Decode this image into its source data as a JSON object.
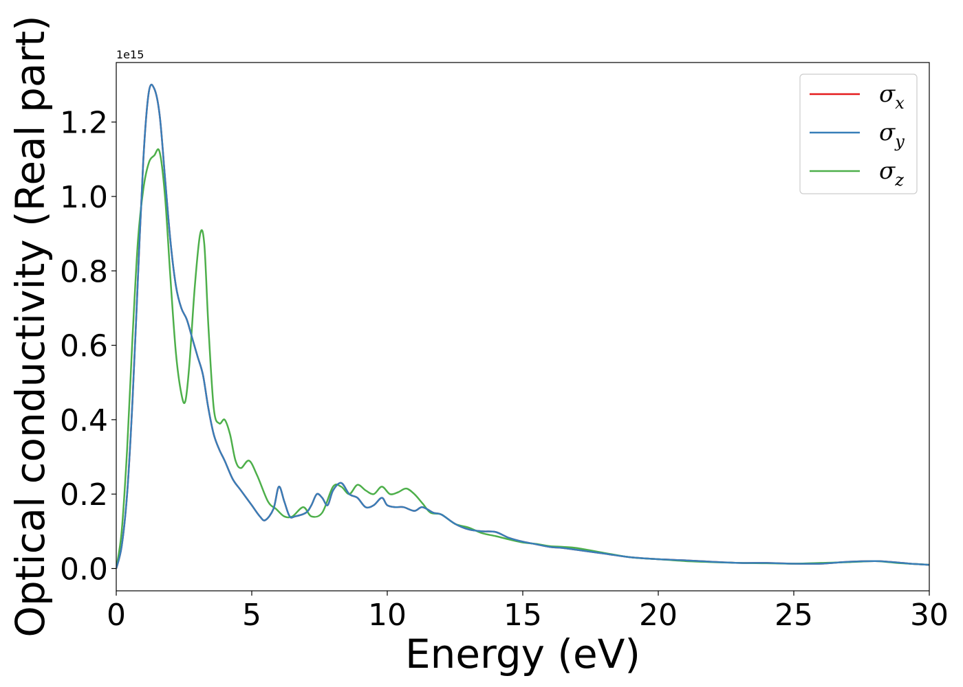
{
  "chart_data": {
    "type": "line",
    "xlabel": "Energy (eV)",
    "ylabel": "Optical conductivity (Real part)",
    "y_offset_label": "1e15",
    "y_scale": 1000000000000000.0,
    "xlim": [
      0,
      30
    ],
    "ylim": [
      -0.06,
      1.36
    ],
    "xticks": [
      0,
      5,
      10,
      15,
      20,
      25,
      30
    ],
    "xtick_labels": [
      "0",
      "5",
      "10",
      "15",
      "20",
      "25",
      "30"
    ],
    "yticks": [
      0.0,
      0.2,
      0.4,
      0.6,
      0.8,
      1.0,
      1.2
    ],
    "ytick_labels": [
      "0.0",
      "0.2",
      "0.4",
      "0.6",
      "0.8",
      "1.0",
      "1.2"
    ],
    "grid": false,
    "legend_position": "top-right",
    "legend": [
      {
        "symbol": "σ",
        "subscript": "x"
      },
      {
        "symbol": "σ",
        "subscript": "y"
      },
      {
        "symbol": "σ",
        "subscript": "z"
      }
    ],
    "series": [
      {
        "color": "#e41a1c",
        "x": [
          0,
          0.2,
          0.4,
          0.6,
          0.8,
          1.0,
          1.2,
          1.4,
          1.6,
          1.8,
          2.0,
          2.2,
          2.4,
          2.6,
          2.8,
          3.0,
          3.2,
          3.4,
          3.6,
          3.8,
          4.0,
          4.3,
          4.6,
          5.0,
          5.3,
          5.5,
          5.8,
          6.0,
          6.2,
          6.4,
          6.6,
          7.0,
          7.2,
          7.4,
          7.6,
          7.8,
          8.0,
          8.3,
          8.6,
          8.9,
          9.2,
          9.5,
          9.8,
          10.0,
          10.3,
          10.6,
          11.0,
          11.3,
          11.7,
          12.0,
          12.5,
          13.0,
          13.5,
          14.0,
          14.5,
          15.0,
          15.5,
          16.0,
          16.5,
          17.0,
          18.0,
          19.0,
          20.0,
          21.0,
          22.0,
          23.0,
          24.0,
          25.0,
          26.0,
          27.0,
          28.0,
          28.5,
          29.0,
          29.5,
          30.0
        ],
        "y": [
          0.0,
          0.06,
          0.2,
          0.45,
          0.78,
          1.1,
          1.28,
          1.29,
          1.22,
          1.05,
          0.88,
          0.76,
          0.7,
          0.67,
          0.62,
          0.57,
          0.52,
          0.43,
          0.36,
          0.32,
          0.29,
          0.24,
          0.21,
          0.17,
          0.14,
          0.13,
          0.16,
          0.22,
          0.18,
          0.14,
          0.14,
          0.15,
          0.17,
          0.2,
          0.19,
          0.17,
          0.21,
          0.23,
          0.2,
          0.19,
          0.165,
          0.17,
          0.19,
          0.17,
          0.165,
          0.165,
          0.155,
          0.165,
          0.15,
          0.145,
          0.12,
          0.105,
          0.1,
          0.098,
          0.082,
          0.072,
          0.065,
          0.058,
          0.055,
          0.05,
          0.04,
          0.03,
          0.025,
          0.022,
          0.018,
          0.015,
          0.015,
          0.013,
          0.013,
          0.018,
          0.02,
          0.018,
          0.015,
          0.012,
          0.01
        ]
      },
      {
        "color": "#377eb8",
        "x": [
          0,
          0.2,
          0.4,
          0.6,
          0.8,
          1.0,
          1.2,
          1.4,
          1.6,
          1.8,
          2.0,
          2.2,
          2.4,
          2.6,
          2.8,
          3.0,
          3.2,
          3.4,
          3.6,
          3.8,
          4.0,
          4.3,
          4.6,
          5.0,
          5.3,
          5.5,
          5.8,
          6.0,
          6.2,
          6.4,
          6.6,
          7.0,
          7.2,
          7.4,
          7.6,
          7.8,
          8.0,
          8.3,
          8.6,
          8.9,
          9.2,
          9.5,
          9.8,
          10.0,
          10.3,
          10.6,
          11.0,
          11.3,
          11.7,
          12.0,
          12.5,
          13.0,
          13.5,
          14.0,
          14.5,
          15.0,
          15.5,
          16.0,
          16.5,
          17.0,
          18.0,
          19.0,
          20.0,
          21.0,
          22.0,
          23.0,
          24.0,
          25.0,
          26.0,
          27.0,
          28.0,
          28.5,
          29.0,
          29.5,
          30.0
        ],
        "y": [
          0.0,
          0.06,
          0.2,
          0.45,
          0.78,
          1.1,
          1.28,
          1.29,
          1.22,
          1.05,
          0.88,
          0.76,
          0.7,
          0.67,
          0.62,
          0.57,
          0.52,
          0.43,
          0.36,
          0.32,
          0.29,
          0.24,
          0.21,
          0.17,
          0.14,
          0.13,
          0.16,
          0.22,
          0.18,
          0.14,
          0.14,
          0.15,
          0.17,
          0.2,
          0.19,
          0.17,
          0.21,
          0.23,
          0.2,
          0.19,
          0.165,
          0.17,
          0.19,
          0.17,
          0.165,
          0.165,
          0.155,
          0.165,
          0.15,
          0.145,
          0.12,
          0.105,
          0.1,
          0.098,
          0.082,
          0.072,
          0.065,
          0.058,
          0.055,
          0.05,
          0.04,
          0.03,
          0.025,
          0.022,
          0.018,
          0.015,
          0.015,
          0.013,
          0.013,
          0.018,
          0.02,
          0.018,
          0.015,
          0.012,
          0.01
        ]
      },
      {
        "color": "#4daf4a",
        "x": [
          0,
          0.2,
          0.4,
          0.6,
          0.8,
          1.0,
          1.2,
          1.4,
          1.6,
          1.8,
          2.0,
          2.2,
          2.4,
          2.55,
          2.7,
          2.9,
          3.1,
          3.25,
          3.4,
          3.6,
          3.8,
          4.0,
          4.2,
          4.4,
          4.6,
          4.9,
          5.2,
          5.6,
          5.9,
          6.2,
          6.5,
          6.9,
          7.2,
          7.6,
          8.0,
          8.3,
          8.6,
          8.9,
          9.2,
          9.5,
          9.8,
          10.1,
          10.4,
          10.7,
          11.0,
          11.3,
          11.6,
          12.0,
          12.5,
          13.0,
          13.5,
          14.0,
          14.5,
          15.0,
          15.5,
          16.0,
          16.5,
          17.0,
          18.0,
          19.0,
          20.0,
          21.0,
          22.0,
          23.0,
          24.0,
          25.0,
          26.0,
          27.0,
          28.0,
          28.5,
          29.0,
          29.5,
          30.0
        ],
        "y": [
          0.0,
          0.1,
          0.32,
          0.62,
          0.88,
          1.02,
          1.09,
          1.11,
          1.12,
          1.0,
          0.78,
          0.58,
          0.47,
          0.45,
          0.55,
          0.76,
          0.9,
          0.87,
          0.65,
          0.43,
          0.39,
          0.4,
          0.36,
          0.29,
          0.27,
          0.29,
          0.25,
          0.18,
          0.16,
          0.14,
          0.14,
          0.165,
          0.14,
          0.15,
          0.22,
          0.22,
          0.2,
          0.225,
          0.21,
          0.2,
          0.22,
          0.2,
          0.205,
          0.215,
          0.2,
          0.175,
          0.15,
          0.145,
          0.12,
          0.11,
          0.095,
          0.087,
          0.078,
          0.07,
          0.066,
          0.06,
          0.058,
          0.055,
          0.042,
          0.03,
          0.025,
          0.02,
          0.017,
          0.015,
          0.014,
          0.013,
          0.015,
          0.017,
          0.02,
          0.017,
          0.014,
          0.012,
          0.01
        ]
      }
    ]
  }
}
